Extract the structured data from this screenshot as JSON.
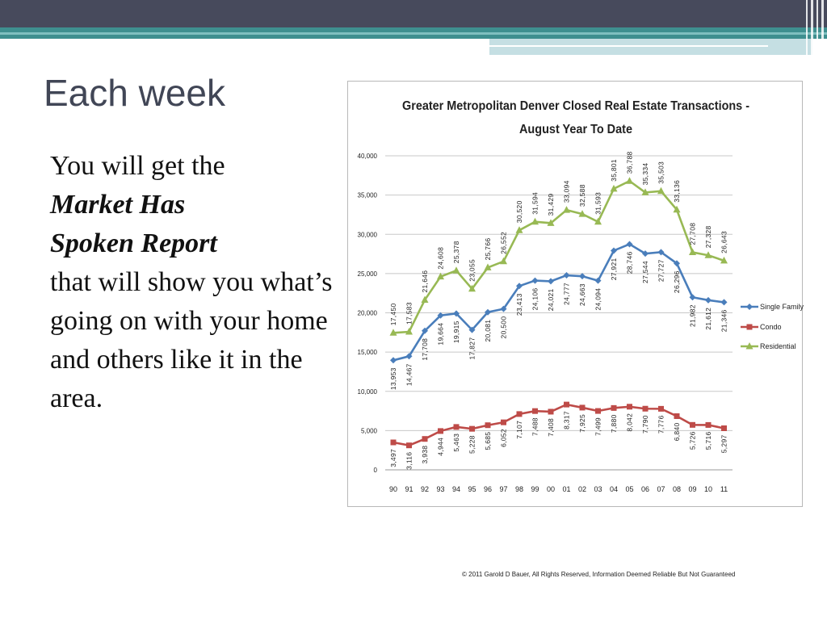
{
  "slide": {
    "title": "Each week",
    "body_line_1": "You will get the",
    "body_bold_1": "Market Has",
    "body_bold_2": "Spoken Report",
    "body_rest": "that will show you what’s going on with your home and others like it in the area.",
    "copyright": "© 2011 Garold D Bauer, All Rights Reserved, Information Deemed Reliable But Not Guaranteed"
  },
  "theme": {
    "header_color": "#474a5c",
    "accent_teal": "#3e8f8f",
    "title_color": "#414656"
  },
  "chart_data": {
    "type": "line",
    "title_line1": "Greater Metropolitan Denver Closed Real Estate Transactions -",
    "title_line2": "August Year To Date",
    "categories": [
      "90",
      "91",
      "92",
      "93",
      "94",
      "95",
      "96",
      "97",
      "98",
      "99",
      "00",
      "01",
      "02",
      "03",
      "04",
      "05",
      "06",
      "07",
      "08",
      "09",
      "10",
      "11"
    ],
    "y_ticks": [
      "0",
      "5,000",
      "10,000",
      "15,000",
      "20,000",
      "25,000",
      "30,000",
      "35,000",
      "40,000"
    ],
    "ylim": [
      0,
      40000
    ],
    "grid": true,
    "legend_position": "right",
    "series": [
      {
        "name": "Single Family",
        "color": "#4a7ebb",
        "marker": "diamond",
        "values": [
          13953,
          14467,
          17708,
          19664,
          19915,
          17827,
          20081,
          20500,
          23413,
          24106,
          24021,
          24777,
          24663,
          24094,
          27921,
          28746,
          27544,
          27727,
          26296,
          21982,
          21612,
          21346
        ],
        "labels": [
          "13,953",
          "14,467",
          "17,708",
          "19,664",
          "19,915",
          "17,827",
          "20,081",
          "20,500",
          "23,413",
          "24,106",
          "24,021",
          "24,777",
          "24,663",
          "24,094",
          "27,921",
          "28,746",
          "27,544",
          "27,727",
          "26,296",
          "21,982",
          "21,612",
          "21,346"
        ]
      },
      {
        "name": "Condo",
        "color": "#be4b48",
        "marker": "square",
        "values": [
          3497,
          3116,
          3938,
          4944,
          5463,
          5228,
          5685,
          6052,
          7107,
          7488,
          7408,
          8317,
          7925,
          7499,
          7880,
          8042,
          7790,
          7776,
          6840,
          5726,
          5716,
          5297
        ],
        "labels": [
          "3,497",
          "3,116",
          "3,938",
          "4,944",
          "5,463",
          "5,228",
          "5,685",
          "6,052",
          "7,107",
          "7,488",
          "7,408",
          "8,317",
          "7,925",
          "7,499",
          "7,880",
          "8,042",
          "7,790",
          "7,776",
          "6,840",
          "5,726",
          "5,716",
          "5,297"
        ]
      },
      {
        "name": "Residential",
        "color": "#98b954",
        "marker": "triangle",
        "values": [
          17450,
          17583,
          21646,
          24608,
          25378,
          23055,
          25766,
          26552,
          30520,
          31594,
          31429,
          33094,
          32588,
          31593,
          35801,
          36788,
          35334,
          35503,
          33136,
          27708,
          27328,
          26643
        ],
        "labels": [
          "17,450",
          "17,583",
          "21,646",
          "24,608",
          "25,378",
          "23,055",
          "25,766",
          "26,552",
          "30,520",
          "31,594",
          "31,429",
          "33,094",
          "32,588",
          "31,593",
          "35,801",
          "36,788",
          "35,334",
          "35,503",
          "33,136",
          "27,708",
          "27,328",
          "26,643"
        ]
      }
    ]
  }
}
